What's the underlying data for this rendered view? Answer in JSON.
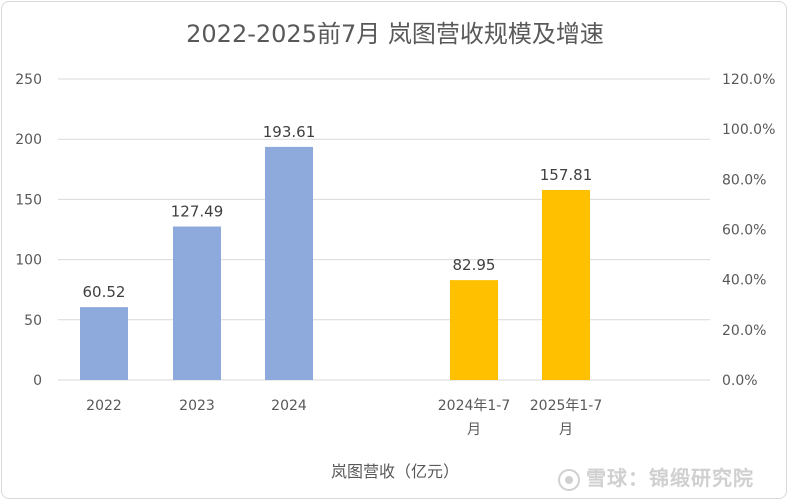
{
  "chart_data": {
    "type": "bar",
    "title": "2022-2025前7月 岚图营收规模及增速",
    "categories": [
      "2022",
      "2023",
      "2024",
      "",
      "2024年1-7月",
      "2025年1-7月"
    ],
    "category_lines": [
      [
        "2022"
      ],
      [
        "2023"
      ],
      [
        "2024"
      ],
      [],
      [
        "2024年1-7",
        "月"
      ],
      [
        "2025年1-7",
        "月"
      ]
    ],
    "values": [
      60.52,
      127.49,
      193.61,
      null,
      82.95,
      157.81
    ],
    "bar_colors": [
      "#8EA9DB",
      "#8EA9DB",
      "#8EA9DB",
      null,
      "#FFC000",
      "#FFC000"
    ],
    "y_left": {
      "ylim": [
        0,
        250
      ],
      "ticks": [
        "0",
        "50",
        "100",
        "150",
        "200",
        "250"
      ]
    },
    "y_right": {
      "ylim": [
        0,
        120
      ],
      "ticks": [
        "0.0%",
        "20.0%",
        "40.0%",
        "60.0%",
        "80.0%",
        "100.0%",
        "120.0%"
      ]
    },
    "legend": "岚图营收（亿元）",
    "grid": true,
    "colors": {
      "blue": "#8EA9DB",
      "orange": "#FFC000",
      "gridline": "#d9d9d9",
      "text": "#595959"
    }
  },
  "watermark": "雪球：锦缎研究院"
}
